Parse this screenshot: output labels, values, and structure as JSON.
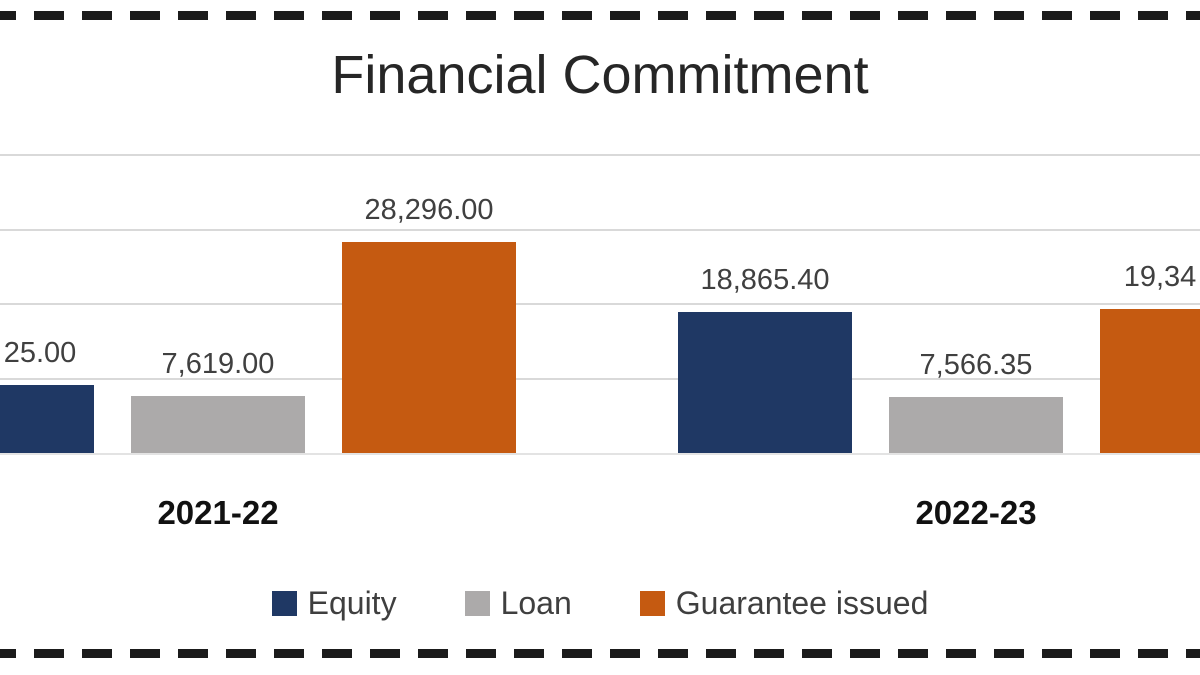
{
  "chart_data": {
    "type": "bar",
    "title": "Financial Commitment",
    "categories": [
      "2021-22",
      "2022-23"
    ],
    "series": [
      {
        "name": "Equity",
        "color": "#1F3864",
        "values": [
          9125,
          18865.4
        ],
        "data_labels": [
          "25.00",
          "18,865.40"
        ]
      },
      {
        "name": "Loan",
        "color": "#ACAAAA",
        "values": [
          7619.0,
          7566.35
        ],
        "data_labels": [
          "7,619.00",
          "7,566.35"
        ]
      },
      {
        "name": "Guarantee issued",
        "color": "#C55A11",
        "values": [
          28296.0,
          19340
        ],
        "data_labels": [
          "28,296.00",
          "19,34"
        ]
      }
    ],
    "ylim": [
      0,
      40000
    ],
    "gridline_values": [
      10000,
      20000,
      30000,
      40000
    ],
    "grid_color": "#D9D9D9",
    "label_color": "#404040",
    "legend": {
      "position": "bottom",
      "entries": [
        "Equity",
        "Loan",
        "Guarantee issued"
      ]
    },
    "clipped_edges": {
      "left": "Equity 2021-22 bar partially cut off; its data label truncated to '25.00'",
      "right": "Guarantee issued 2022-23 bar partially cut off; its data label truncated to '19,34'"
    }
  },
  "frame": {
    "border_style": "dashed",
    "border_color": "#1B1B1B",
    "background": "#FFFFFF"
  }
}
